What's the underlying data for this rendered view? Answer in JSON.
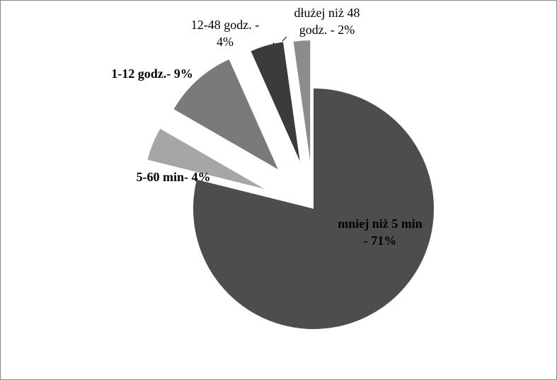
{
  "chart_data": {
    "type": "pie",
    "values": [
      71,
      4,
      9,
      4,
      2
    ],
    "value_labels": [
      [
        "mniej niż  5 min",
        "- 71%"
      ],
      [
        "5-60 min-  4%"
      ],
      [
        "1-12 godz.- 9%"
      ],
      [
        "12-48 godz. -",
        "4%"
      ],
      [
        "dłużej niż 48",
        "godz. - 2%"
      ]
    ],
    "colors": [
      "#4d4d4d",
      "#a6a6a6",
      "#7a7a7a",
      "#3b3b3b",
      "#8c8c8c"
    ]
  }
}
